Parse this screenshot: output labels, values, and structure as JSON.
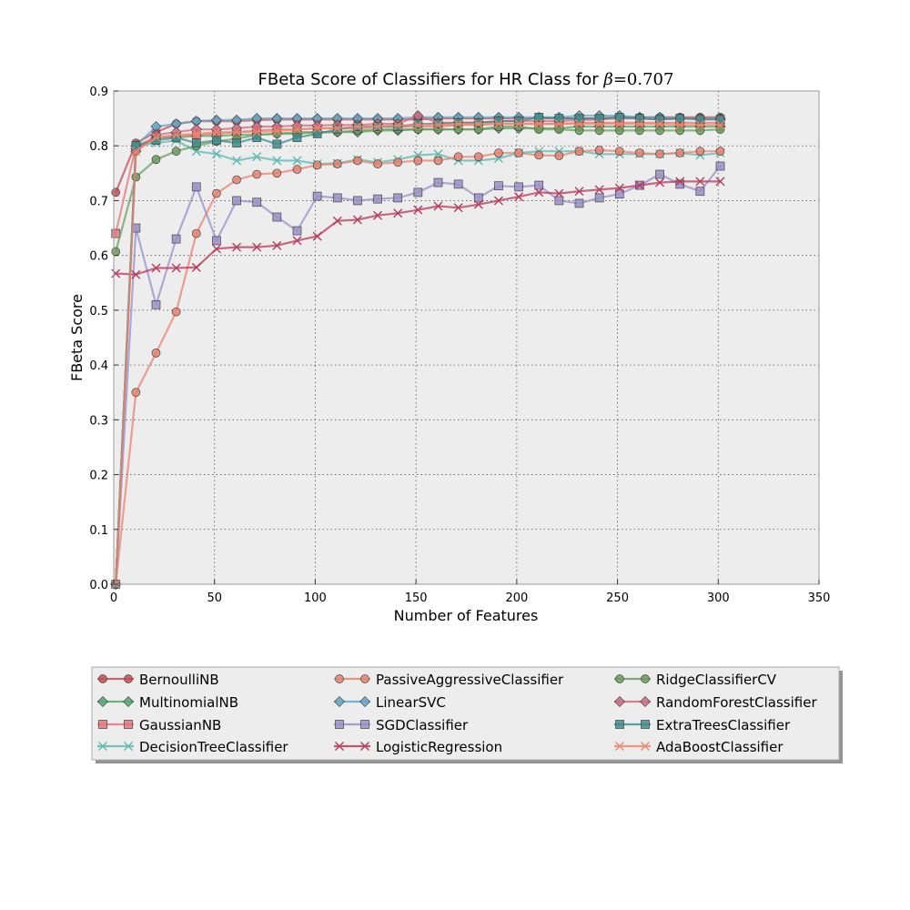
{
  "chart_data": {
    "type": "line",
    "title": "FBeta Score of Classifiers for HR Class for β=0.707",
    "title_parts": {
      "prefix": "FBeta Score of Classifiers for HR Class for ",
      "beta": "β",
      "eq": "=",
      "value": "0.707"
    },
    "xlabel": "Number of Features",
    "ylabel": "FBeta Score",
    "xlim": [
      0,
      350
    ],
    "ylim": [
      0.0,
      0.9
    ],
    "xticks": [
      0,
      50,
      100,
      150,
      200,
      250,
      300,
      350
    ],
    "yticks": [
      0.0,
      0.1,
      0.2,
      0.3,
      0.4,
      0.5,
      0.6,
      0.7,
      0.8,
      0.9
    ],
    "grid": true,
    "legend_position": "bottom",
    "x": [
      1,
      11,
      21,
      31,
      41,
      51,
      61,
      71,
      81,
      91,
      101,
      111,
      121,
      131,
      141,
      151,
      161,
      171,
      181,
      191,
      201,
      211,
      221,
      231,
      241,
      251,
      261,
      271,
      281,
      291,
      301
    ],
    "series": [
      {
        "name": "BernoulliNB",
        "color": "#C44E52",
        "marker": "circle",
        "values": [
          0.715,
          0.805,
          0.825,
          0.84,
          0.845,
          0.845,
          0.845,
          0.847,
          0.848,
          0.848,
          0.848,
          0.848,
          0.848,
          0.848,
          0.848,
          0.848,
          0.85,
          0.85,
          0.85,
          0.85,
          0.85,
          0.85,
          0.85,
          0.85,
          0.85,
          0.852,
          0.852,
          0.852,
          0.852,
          0.852,
          0.852
        ]
      },
      {
        "name": "MultinomialNB",
        "color": "#55A868",
        "marker": "diamond",
        "values": [
          0.0,
          0.795,
          0.815,
          0.815,
          0.818,
          0.818,
          0.82,
          0.82,
          0.822,
          0.822,
          0.825,
          0.825,
          0.825,
          0.828,
          0.828,
          0.83,
          0.83,
          0.83,
          0.83,
          0.832,
          0.832,
          0.832,
          0.832,
          0.835,
          0.835,
          0.835,
          0.835,
          0.835,
          0.835,
          0.835,
          0.835
        ]
      },
      {
        "name": "GaussianNB",
        "color": "#E8747A",
        "marker": "square",
        "values": [
          0.64,
          0.8,
          0.815,
          0.818,
          0.82,
          0.822,
          0.825,
          0.828,
          0.83,
          0.83,
          0.832,
          0.832,
          0.832,
          0.835,
          0.835,
          0.835,
          0.835,
          0.838,
          0.838,
          0.84,
          0.84,
          0.84,
          0.84,
          0.842,
          0.842,
          0.842,
          0.842,
          0.842,
          0.842,
          0.842,
          0.842
        ]
      },
      {
        "name": "DecisionTreeClassifier",
        "color": "#5DB8B0",
        "marker": "x",
        "values": [
          0.0,
          0.8,
          0.805,
          0.81,
          0.79,
          0.785,
          0.773,
          0.78,
          0.773,
          0.773,
          0.767,
          0.768,
          0.775,
          0.77,
          0.775,
          0.783,
          0.785,
          0.773,
          0.773,
          0.777,
          0.787,
          0.79,
          0.79,
          0.79,
          0.785,
          0.785,
          0.785,
          0.785,
          0.787,
          0.783,
          0.787
        ]
      },
      {
        "name": "PassiveAggressiveClassifier",
        "color": "#E8836E",
        "marker": "circle",
        "values": [
          0.0,
          0.35,
          0.422,
          0.497,
          0.64,
          0.713,
          0.738,
          0.748,
          0.75,
          0.757,
          0.765,
          0.767,
          0.773,
          0.767,
          0.77,
          0.773,
          0.773,
          0.78,
          0.78,
          0.787,
          0.787,
          0.783,
          0.782,
          0.79,
          0.792,
          0.79,
          0.787,
          0.785,
          0.787,
          0.79,
          0.79
        ]
      },
      {
        "name": "LinearSVC",
        "color": "#64A7C8",
        "marker": "diamond",
        "values": [
          0.0,
          0.8,
          0.835,
          0.84,
          0.845,
          0.847,
          0.847,
          0.85,
          0.85,
          0.85,
          0.85,
          0.85,
          0.85,
          0.85,
          0.85,
          0.852,
          0.852,
          0.852,
          0.852,
          0.852,
          0.852,
          0.852,
          0.852,
          0.855,
          0.855,
          0.855,
          0.852,
          0.852,
          0.85,
          0.85,
          0.85
        ]
      },
      {
        "name": "SGDClassifier",
        "color": "#9A8FC9",
        "marker": "square",
        "values": [
          0.0,
          0.65,
          0.51,
          0.63,
          0.725,
          0.627,
          0.7,
          0.697,
          0.67,
          0.645,
          0.708,
          0.705,
          0.7,
          0.703,
          0.705,
          0.715,
          0.733,
          0.73,
          0.705,
          0.727,
          0.725,
          0.728,
          0.7,
          0.695,
          0.705,
          0.712,
          0.728,
          0.748,
          0.73,
          0.717,
          0.763
        ]
      },
      {
        "name": "LogisticRegression",
        "color": "#B83A5C",
        "marker": "x",
        "values": [
          0.567,
          0.565,
          0.577,
          0.577,
          0.578,
          0.612,
          0.615,
          0.615,
          0.618,
          0.627,
          0.635,
          0.663,
          0.665,
          0.673,
          0.677,
          0.683,
          0.69,
          0.687,
          0.693,
          0.7,
          0.707,
          0.715,
          0.713,
          0.717,
          0.72,
          0.723,
          0.728,
          0.733,
          0.735,
          0.735,
          0.735
        ]
      },
      {
        "name": "RidgeClassifierCV",
        "color": "#6A9E5A",
        "marker": "circle",
        "values": [
          0.607,
          0.743,
          0.775,
          0.79,
          0.8,
          0.808,
          0.813,
          0.82,
          0.822,
          0.825,
          0.825,
          0.825,
          0.828,
          0.83,
          0.83,
          0.83,
          0.83,
          0.83,
          0.83,
          0.835,
          0.835,
          0.83,
          0.83,
          0.828,
          0.828,
          0.828,
          0.828,
          0.828,
          0.828,
          0.828,
          0.83
        ]
      },
      {
        "name": "RandomForestClassifier",
        "color": "#D06A82",
        "marker": "diamond",
        "values": [
          0.0,
          0.79,
          0.82,
          0.825,
          0.83,
          0.83,
          0.832,
          0.835,
          0.835,
          0.837,
          0.837,
          0.838,
          0.838,
          0.84,
          0.84,
          0.855,
          0.842,
          0.842,
          0.842,
          0.845,
          0.845,
          0.845,
          0.845,
          0.847,
          0.848,
          0.85,
          0.85,
          0.848,
          0.85,
          0.85,
          0.848
        ]
      },
      {
        "name": "ExtraTreesClassifier",
        "color": "#3E8E8E",
        "marker": "square",
        "values": [
          0.0,
          0.8,
          0.81,
          0.815,
          0.805,
          0.81,
          0.805,
          0.815,
          0.803,
          0.815,
          0.822,
          0.83,
          0.835,
          0.835,
          0.835,
          0.84,
          0.84,
          0.842,
          0.842,
          0.845,
          0.845,
          0.852,
          0.85,
          0.85,
          0.85,
          0.852,
          0.85,
          0.848,
          0.85,
          0.848,
          0.848
        ]
      },
      {
        "name": "AdaBoostClassifier",
        "color": "#F0866A",
        "marker": "x",
        "values": [
          0.0,
          0.79,
          0.815,
          0.82,
          0.822,
          0.825,
          0.825,
          0.825,
          0.827,
          0.83,
          0.832,
          0.832,
          0.835,
          0.835,
          0.837,
          0.838,
          0.838,
          0.84,
          0.84,
          0.84,
          0.84,
          0.84,
          0.84,
          0.84,
          0.84,
          0.84,
          0.84,
          0.84,
          0.838,
          0.838,
          0.838
        ]
      }
    ]
  }
}
